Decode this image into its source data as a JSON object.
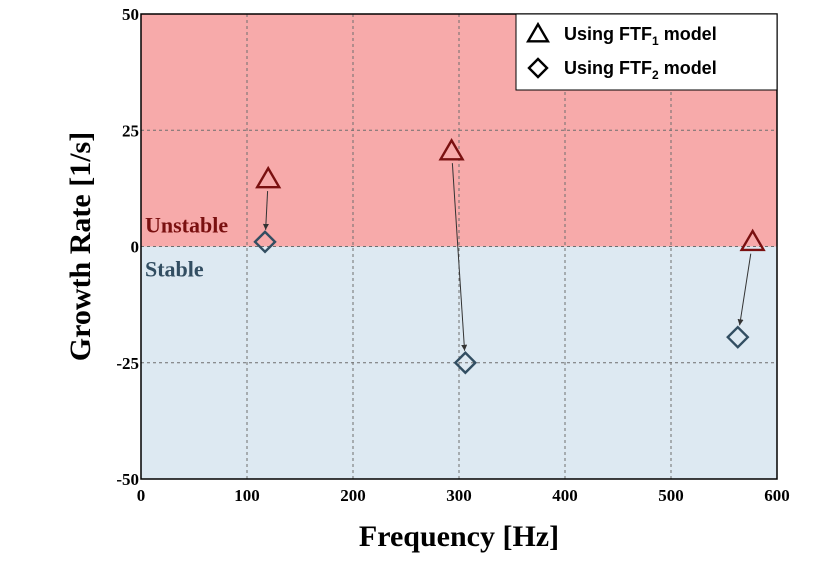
{
  "chart_data": {
    "type": "scatter",
    "title": "",
    "xlabel": "Frequency [Hz]",
    "ylabel": "Growth Rate  [1/s]",
    "xlim": [
      0,
      600
    ],
    "ylim": [
      -50,
      50
    ],
    "xticks": [
      "0",
      "100",
      "200",
      "300",
      "400",
      "500",
      "600"
    ],
    "yticks": [
      "50",
      "25",
      "0",
      "-25",
      "-50"
    ],
    "grid": true,
    "legend_position": "top-right",
    "regions": [
      {
        "label": "Unstable",
        "y_range": [
          0,
          50
        ],
        "color": "#f7aaaa",
        "label_color": "#7a1010"
      },
      {
        "label": "Stable",
        "y_range": [
          -50,
          0
        ],
        "color": "#dde9f2",
        "label_color": "#324e62"
      }
    ],
    "series": [
      {
        "name_parts": {
          "prefix": "Using FTF",
          "sub": "1",
          "suffix": " model"
        },
        "marker": "triangle",
        "color": "#7a1010",
        "x": [
          120,
          293,
          577
        ],
        "y": [
          14.5,
          20.5,
          1.0
        ]
      },
      {
        "name_parts": {
          "prefix": "Using FTF",
          "sub": "2",
          "suffix": " model"
        },
        "marker": "diamond",
        "color": "#324e62",
        "x": [
          117,
          306,
          563
        ],
        "y": [
          1.0,
          -25,
          -19.5
        ]
      }
    ],
    "arrows": [
      {
        "from_series": 0,
        "to_series": 1,
        "index": 0
      },
      {
        "from_series": 0,
        "to_series": 1,
        "index": 1
      },
      {
        "from_series": 0,
        "to_series": 1,
        "index": 2
      }
    ]
  }
}
